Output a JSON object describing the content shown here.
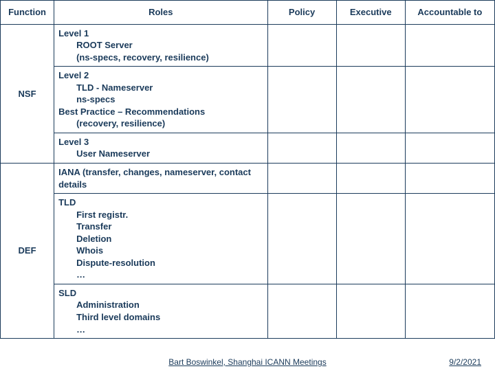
{
  "colors": {
    "text": "#1a3a5a",
    "border": "#1a3a5a",
    "background": "#ffffff"
  },
  "headers": {
    "function": "Function",
    "roles": "Roles",
    "policy": "Policy",
    "executive": "Executive",
    "accountable": "Accountable to"
  },
  "rows": {
    "nsf": {
      "label": "NSF",
      "r1": {
        "l1": "Level 1",
        "l2": "ROOT Server",
        "l3": "(ns-specs, recovery, resilience)"
      },
      "r2": {
        "l1": "Level 2",
        "l2": "TLD - Nameserver",
        "l3": "ns-specs",
        "l4": "Best Practice – Recommendations",
        "l5": "(recovery, resilience)"
      },
      "r3": {
        "l1": "Level 3",
        "l2": "User Nameserver"
      }
    },
    "def": {
      "label": "DEF",
      "r1": {
        "l1": "IANA (transfer, changes, nameserver, contact details"
      },
      "r2": {
        "l1": "TLD",
        "l2": "First registr.",
        "l3": "Transfer",
        "l4": "Deletion",
        "l5": "Whois",
        "l6": "Dispute-resolution",
        "l7": "…"
      },
      "r3": {
        "l1": "SLD",
        "l2": "Administration",
        "l3": "Third level domains",
        "l4": "…"
      }
    }
  },
  "footer": {
    "center": "Bart Boswinkel, Shanghai ICANN Meetings",
    "right": "9/2/2021"
  }
}
